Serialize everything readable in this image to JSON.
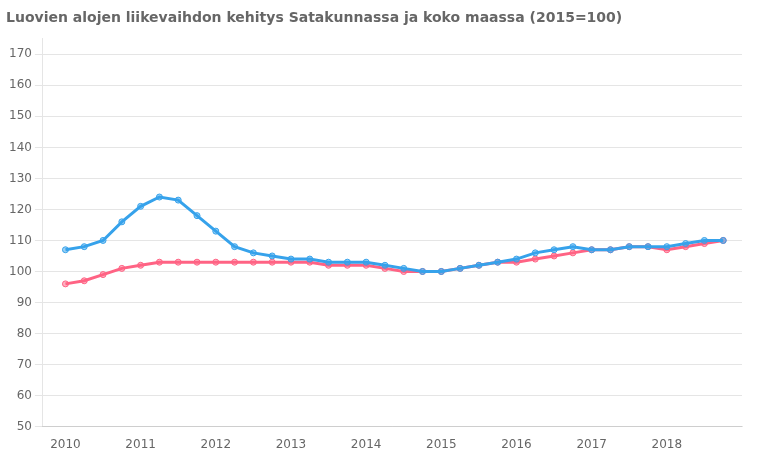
{
  "chart_data": {
    "type": "line",
    "title": "Luovien alojen liikevaihdon kehitys Satakunnassa ja koko maassa (2015=100)",
    "x": [
      2010.0,
      2010.25,
      2010.5,
      2010.75,
      2011.0,
      2011.25,
      2011.5,
      2011.75,
      2012.0,
      2012.25,
      2012.5,
      2012.75,
      2013.0,
      2013.25,
      2013.5,
      2013.75,
      2014.0,
      2014.25,
      2014.5,
      2014.75,
      2015.0,
      2015.25,
      2015.5,
      2015.75,
      2016.0,
      2016.25,
      2016.5,
      2016.75,
      2017.0,
      2017.25,
      2017.5,
      2017.75,
      2018.0,
      2018.25,
      2018.5,
      2018.75
    ],
    "series": [
      {
        "values": [
          107,
          108,
          110,
          116,
          121,
          124,
          123,
          118,
          113,
          108,
          106,
          105,
          104,
          104,
          103,
          103,
          103,
          102,
          101,
          100,
          100,
          101,
          102,
          103,
          104,
          106,
          107,
          108,
          107,
          107,
          108,
          108,
          108,
          109,
          110,
          110
        ]
      },
      {
        "values": [
          96,
          97,
          99,
          101,
          102,
          103,
          103,
          103,
          103,
          103,
          103,
          103,
          103,
          103,
          102,
          102,
          102,
          101,
          100,
          100,
          100,
          101,
          102,
          103,
          103,
          104,
          105,
          106,
          107,
          107,
          108,
          108,
          107,
          108,
          109,
          110
        ]
      }
    ],
    "xlim": [
      2009.7,
      2019.0
    ],
    "xticks": [
      2010,
      2011,
      2012,
      2013,
      2014,
      2015,
      2016,
      2017,
      2018
    ],
    "ylim": [
      50,
      175
    ],
    "yticks": [
      50,
      60,
      70,
      80,
      90,
      100,
      110,
      120,
      130,
      140,
      150,
      160,
      170
    ],
    "grid": "y"
  }
}
